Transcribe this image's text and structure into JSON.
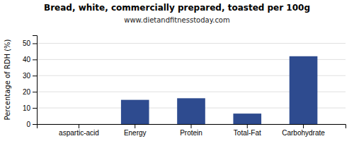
{
  "chart_data": {
    "type": "bar",
    "title": "Bread, white, commercially prepared, toasted per 100g",
    "subtitle": "www.dietandfitnesstoday.com",
    "categories": [
      "aspartic-acid",
      "Energy",
      "Protein",
      "Total-Fat",
      "Carbohydrate"
    ],
    "values": [
      0.0,
      15.0,
      16.0,
      6.5,
      42.0
    ],
    "color": "#2e4b8f",
    "ylabel": "Percentage of RDH (%)",
    "ylim": [
      0,
      55
    ],
    "yticks": [
      0,
      10,
      20,
      30,
      40,
      50
    ],
    "grid": true
  }
}
